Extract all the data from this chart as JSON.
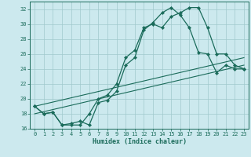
{
  "xlabel": "Humidex (Indice chaleur)",
  "bg_color": "#cce9ee",
  "grid_color": "#a0c8cc",
  "line_color": "#1a6b5a",
  "xlim": [
    -0.5,
    23.5
  ],
  "ylim": [
    16,
    33
  ],
  "xticks": [
    0,
    1,
    2,
    3,
    4,
    5,
    6,
    7,
    8,
    9,
    10,
    11,
    12,
    13,
    14,
    15,
    16,
    17,
    18,
    19,
    20,
    21,
    22,
    23
  ],
  "yticks": [
    16,
    18,
    20,
    22,
    24,
    26,
    28,
    30,
    32
  ],
  "curve1_x": [
    0,
    1,
    2,
    3,
    4,
    5,
    6,
    7,
    8,
    9,
    10,
    11,
    12,
    13,
    14,
    15,
    16,
    17,
    18,
    19,
    20,
    21,
    22,
    23
  ],
  "curve1_y": [
    19.0,
    18.0,
    18.2,
    16.5,
    16.5,
    16.5,
    18.0,
    20.0,
    20.5,
    22.0,
    25.5,
    26.5,
    29.5,
    30.0,
    29.5,
    31.0,
    31.5,
    32.2,
    32.2,
    29.5,
    26.0,
    26.0,
    24.5,
    24.0
  ],
  "curve2_x": [
    0,
    1,
    2,
    3,
    4,
    5,
    6,
    7,
    8,
    9,
    10,
    11,
    12,
    13,
    14,
    15,
    16,
    17,
    18,
    19,
    20,
    21,
    22,
    23
  ],
  "curve2_y": [
    19.0,
    18.0,
    18.2,
    16.5,
    16.7,
    17.0,
    16.5,
    19.5,
    19.8,
    21.0,
    24.5,
    25.5,
    29.2,
    30.2,
    31.5,
    32.2,
    31.2,
    29.5,
    26.2,
    26.0,
    23.5,
    24.5,
    24.0,
    24.0
  ],
  "line1_x": [
    0,
    23
  ],
  "line1_y": [
    19.0,
    25.5
  ],
  "line2_x": [
    0,
    23
  ],
  "line2_y": [
    18.0,
    24.5
  ]
}
